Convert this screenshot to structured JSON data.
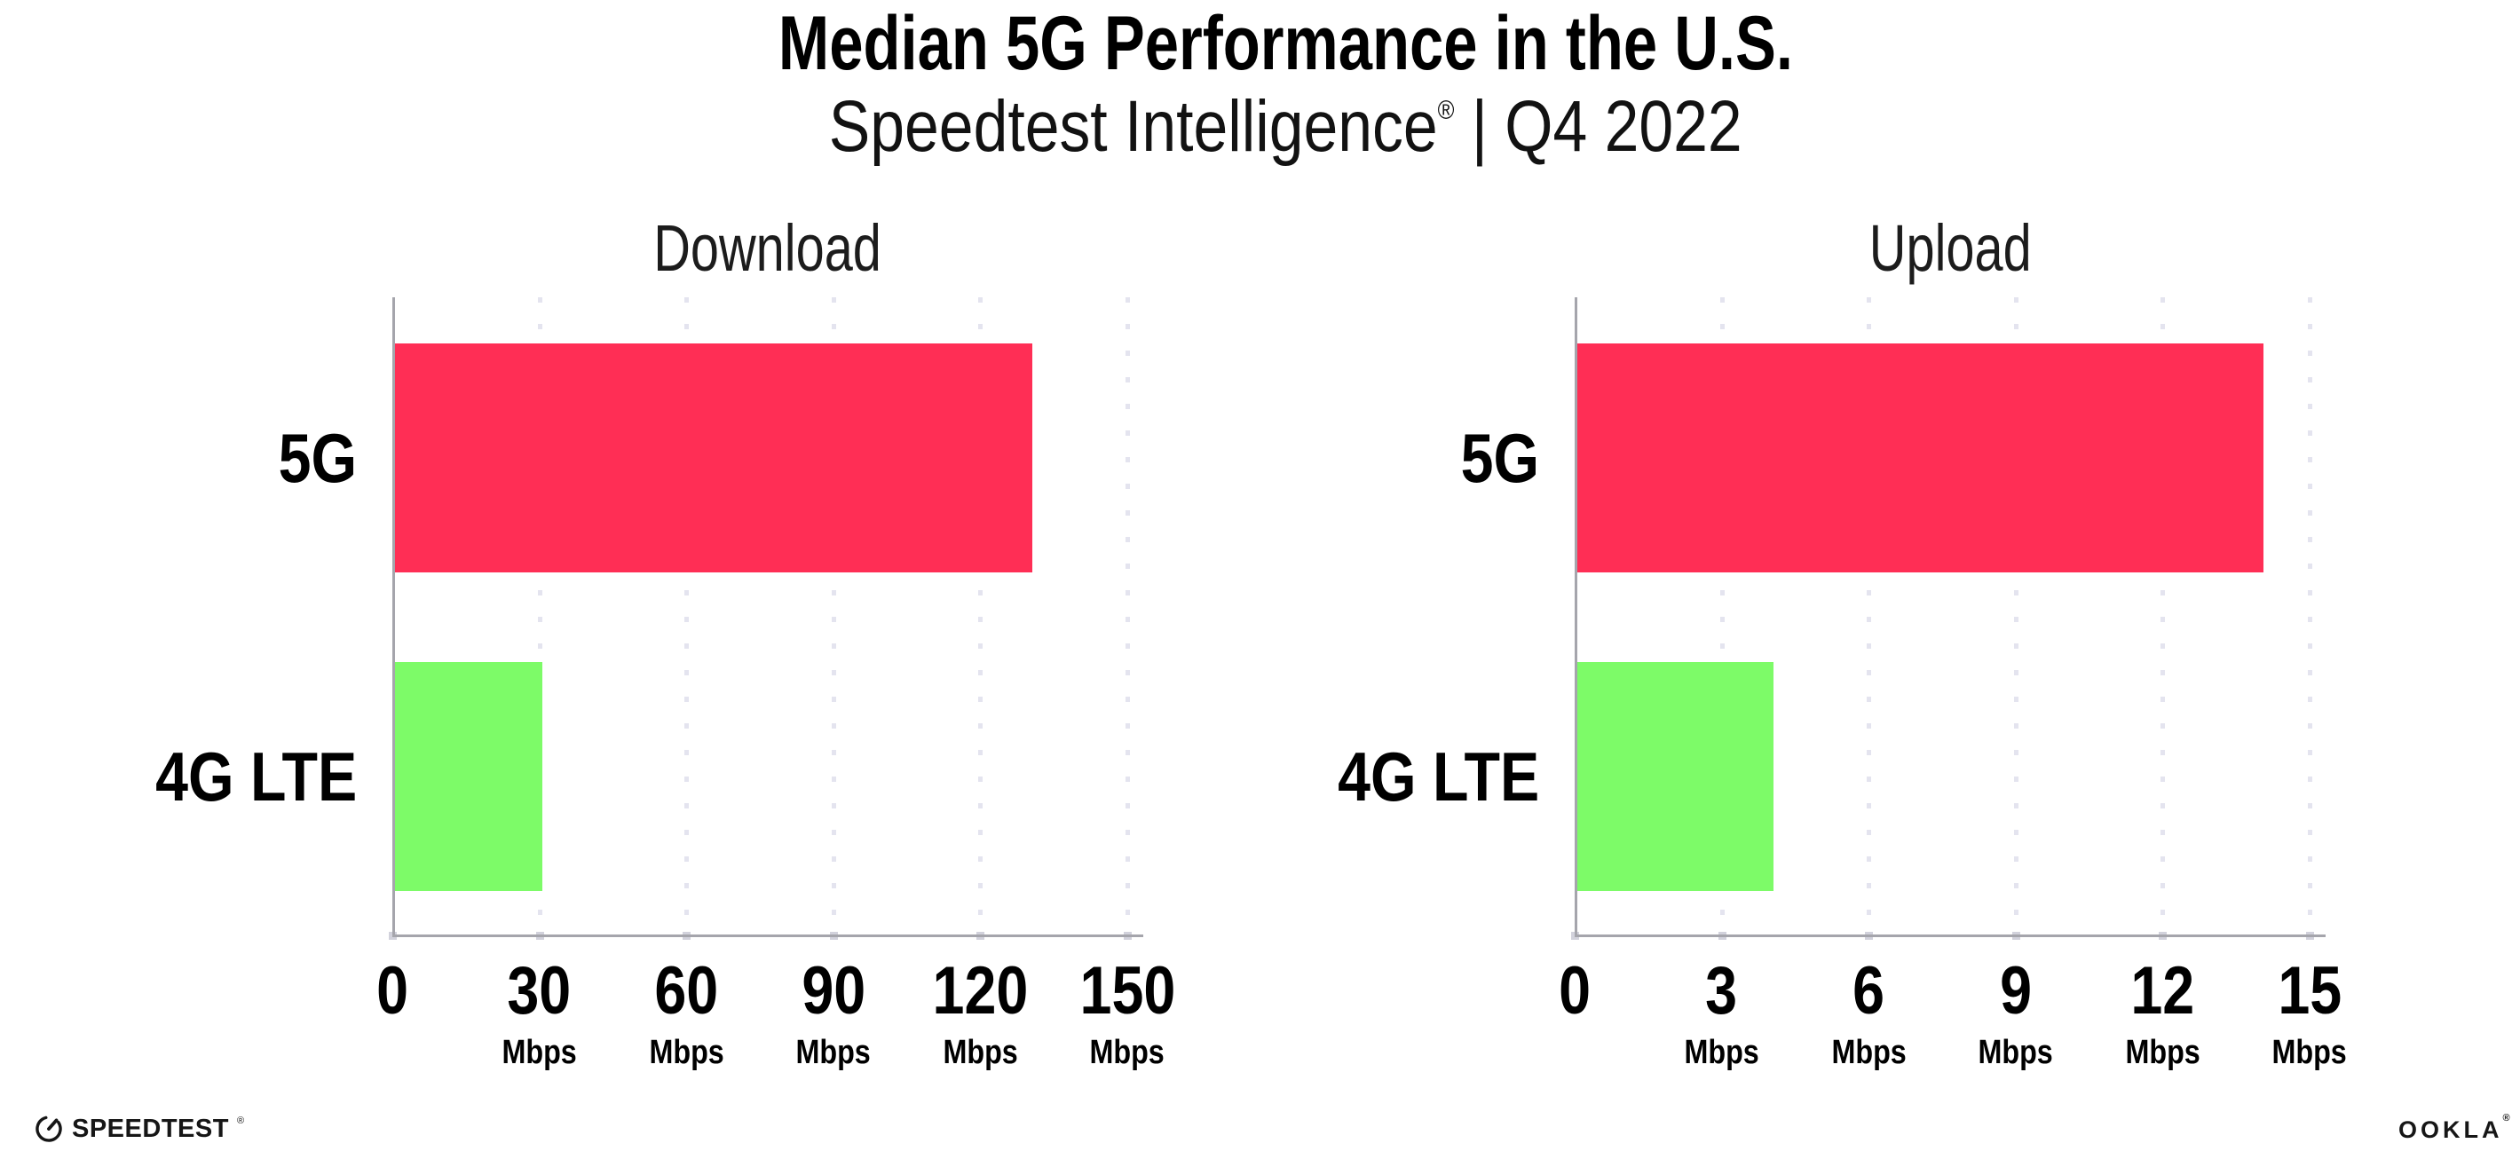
{
  "header": {
    "title": "Median 5G Performance in the U.S.",
    "subtitle_brand": "Speedtest Intelligence",
    "subtitle_reg": "®",
    "subtitle_rest": " | Q4 2022"
  },
  "chart_data": [
    {
      "type": "bar",
      "orientation": "horizontal",
      "title": "Download",
      "categories": [
        "5G",
        "4G LTE"
      ],
      "values": [
        130,
        30
      ],
      "unit": "Mbps",
      "xlim": [
        0,
        150
      ],
      "xticks": [
        0,
        30,
        60,
        90,
        120,
        150
      ],
      "bar_colors": [
        "#FF2E55",
        "#7DFB68"
      ],
      "grid": "dotted vertical gridlines at each tick",
      "legend": "none"
    },
    {
      "type": "bar",
      "orientation": "horizontal",
      "title": "Upload",
      "categories": [
        "5G",
        "4G LTE"
      ],
      "values": [
        14,
        4
      ],
      "unit": "Mbps",
      "xlim": [
        0,
        15
      ],
      "xticks": [
        0,
        3,
        6,
        9,
        12,
        15
      ],
      "bar_colors": [
        "#FF2E55",
        "#7DFB68"
      ],
      "grid": "dotted vertical gridlines at each tick",
      "legend": "none"
    }
  ],
  "footer": {
    "left_logo": "SPEEDTEST",
    "left_logo_mark": "®",
    "left_logo_icon": "speedtest-gauge-icon",
    "right_logo": "OOKLA",
    "right_logo_mark": "®"
  },
  "colors": {
    "bar_5g": "#FF2E55",
    "bar_4g_lte": "#7DFB68",
    "gridline": "#E4E4EF",
    "axis": "#A5A5AC",
    "text": "#0B0B0B",
    "background": "#FFFFFF"
  }
}
